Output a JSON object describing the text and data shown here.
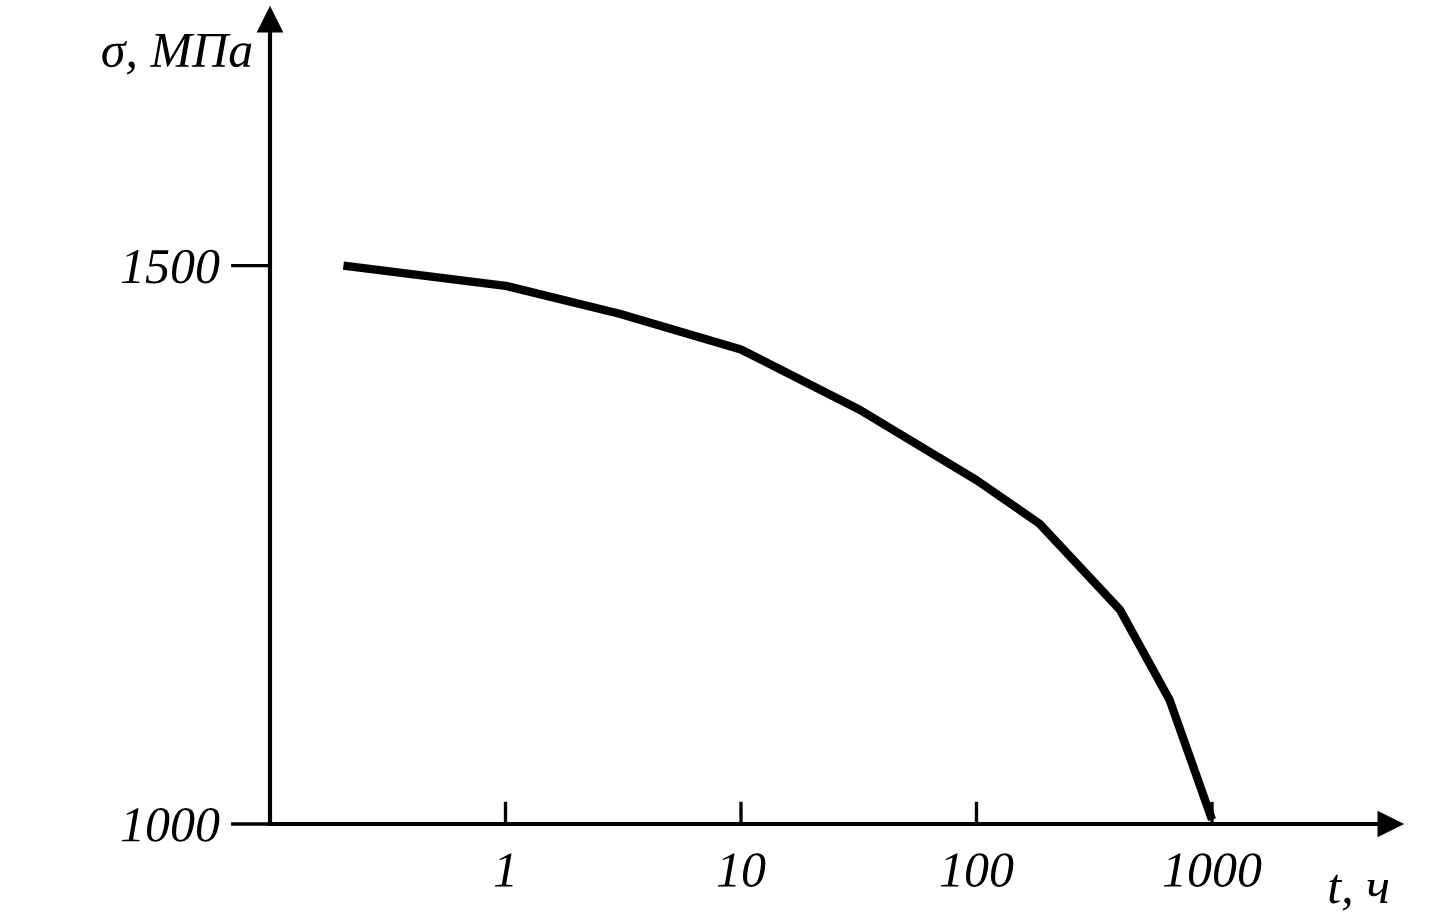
{
  "chart_data": {
    "type": "line",
    "xlabel": "t, ч",
    "ylabel": "σ, МПа",
    "x": [
      0.205,
      1,
      3.05,
      10,
      31.9,
      100,
      185,
      406,
      661,
      1000
    ],
    "series": [
      {
        "color": "#000000",
        "values": [
          1500,
          1482,
          1457,
          1425,
          1371,
          1308,
          1269,
          1192,
          1111,
          1004
        ]
      }
    ],
    "xlim": [
      0.1,
      5700
    ],
    "ylim": [
      1000,
      1720
    ],
    "xticks": [
      1,
      10,
      100,
      1000
    ],
    "yticks": [
      1000,
      1500
    ],
    "log": "x",
    "grid": false
  }
}
